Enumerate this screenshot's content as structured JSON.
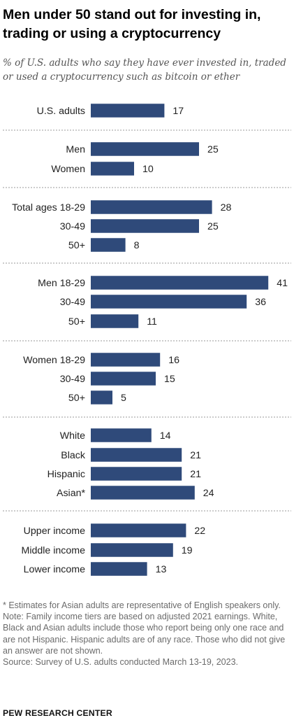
{
  "header": {
    "title": "Men under 50 stand out for investing in, trading or using a cryptocurrency",
    "subtitle": "% of U.S. adults who say they have ever invested in, traded or used a cryptocurrency such as bitcoin or ether"
  },
  "chart_data": {
    "type": "bar",
    "orientation": "horizontal",
    "title": "Men under 50 stand out for investing in, trading or using a cryptocurrency",
    "subtitle": "% of U.S. adults who say they have ever invested in, traded or used a cryptocurrency such as bitcoin or ether",
    "xlim": [
      0,
      41
    ],
    "grid": false,
    "legend": "none",
    "bar_color": "#2f4a7a",
    "groups": [
      {
        "rows": [
          {
            "label": "U.S. adults",
            "value": 17
          }
        ]
      },
      {
        "rows": [
          {
            "label": "Men",
            "value": 25
          },
          {
            "label": "Women",
            "value": 10
          }
        ]
      },
      {
        "rows": [
          {
            "label": "Total ages 18-29",
            "value": 28
          },
          {
            "label": "30-49",
            "value": 25
          },
          {
            "label": "50+",
            "value": 8
          }
        ]
      },
      {
        "rows": [
          {
            "label": "Men 18-29",
            "value": 41
          },
          {
            "label": "30-49",
            "value": 36
          },
          {
            "label": "50+",
            "value": 11
          }
        ]
      },
      {
        "rows": [
          {
            "label": "Women 18-29",
            "value": 16
          },
          {
            "label": "30-49",
            "value": 15
          },
          {
            "label": "50+",
            "value": 5
          }
        ]
      },
      {
        "rows": [
          {
            "label": "White",
            "value": 14
          },
          {
            "label": "Black",
            "value": 21
          },
          {
            "label": "Hispanic",
            "value": 21
          },
          {
            "label": "Asian*",
            "value": 24
          }
        ]
      },
      {
        "rows": [
          {
            "label": "Upper income",
            "value": 22
          },
          {
            "label": "Middle income",
            "value": 19
          },
          {
            "label": "Lower income",
            "value": 13
          }
        ]
      }
    ]
  },
  "notes": {
    "footnote": "* Estimates for Asian adults are representative of English speakers only.",
    "note": "Note: Family income tiers are based on adjusted 2021 earnings. White, Black and Asian adults include those who report being only one race and are not Hispanic. Hispanic adults are of any race. Those who did not give an answer are not shown.",
    "source": "Source: Survey of U.S. adults conducted March 13-19, 2023."
  },
  "footer": {
    "brand": "PEW RESEARCH CENTER"
  }
}
